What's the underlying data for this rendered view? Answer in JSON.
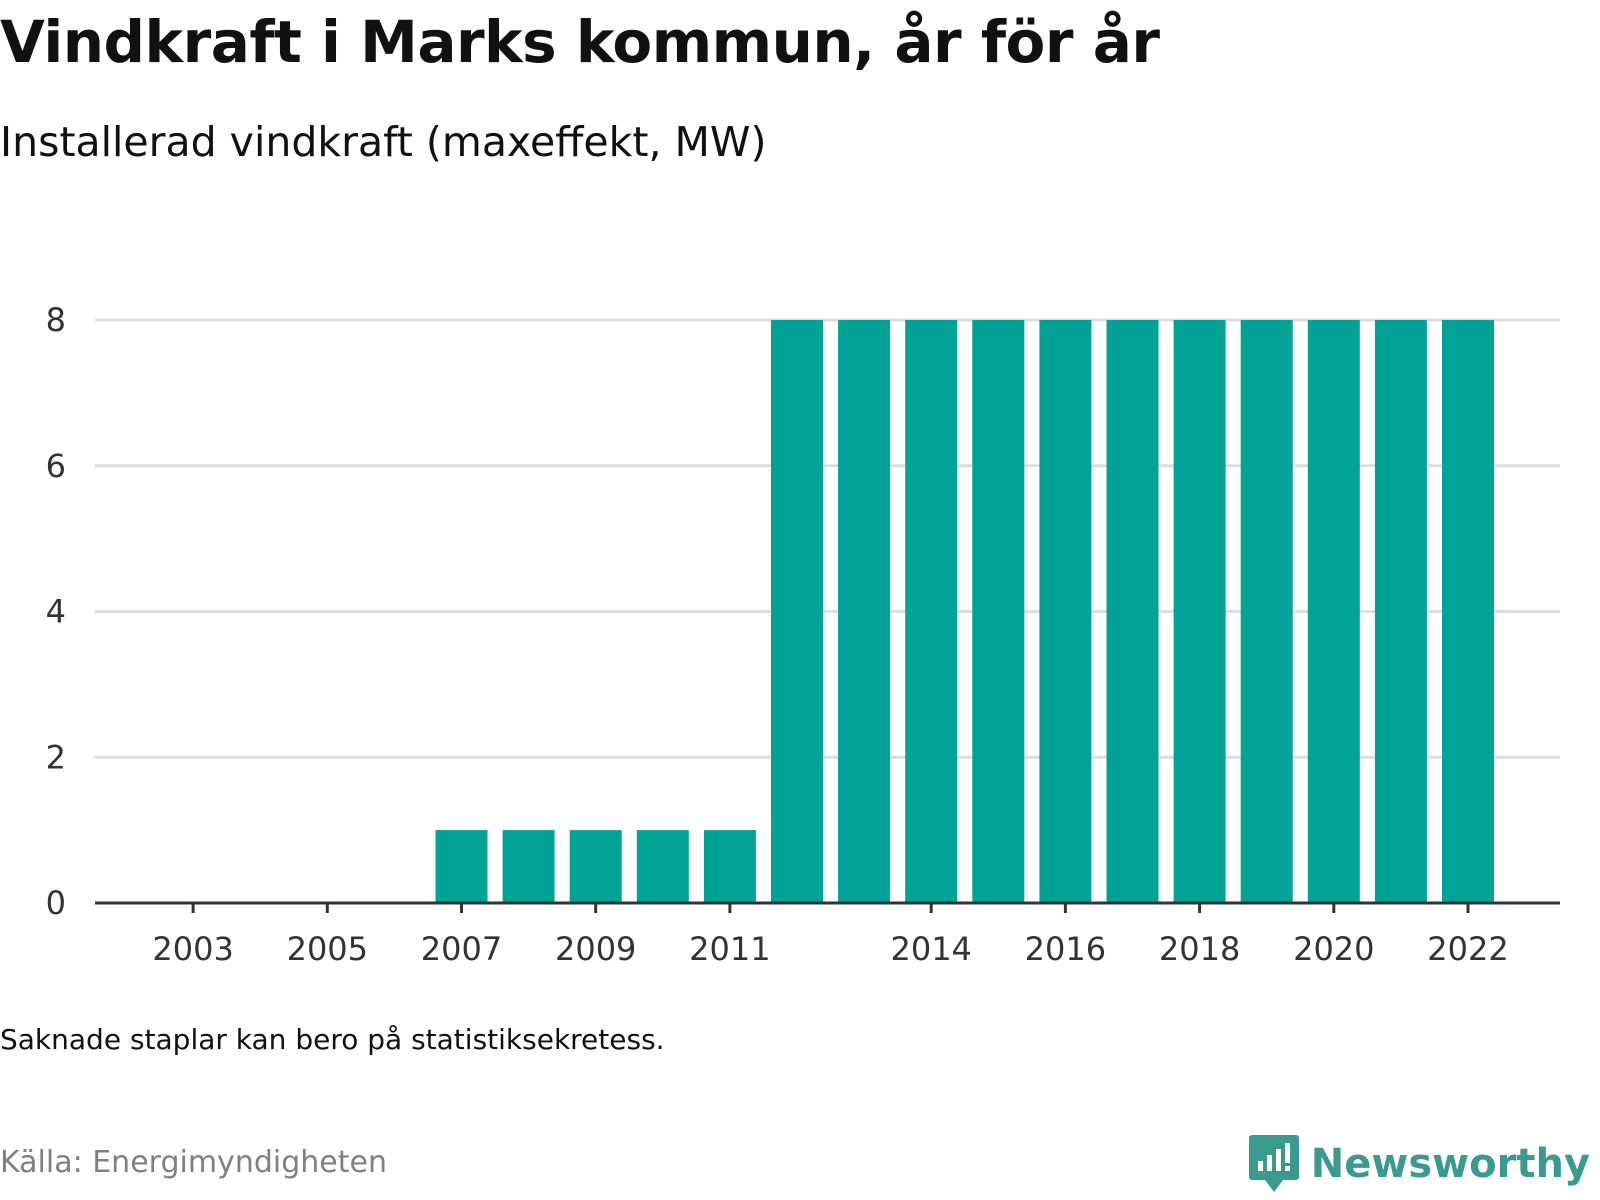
{
  "title": "Vindkraft i Marks kommun, år för år",
  "subtitle": "Installerad vindkraft (maxeffekt, MW)",
  "note": "Saknade staplar kan bero på statistiksekretess.",
  "source": "Källa: Energimyndigheten",
  "brand": {
    "name": "Newsworthy",
    "icon": "newsworthy-logo-icon",
    "color": "#3a9a8f"
  },
  "colors": {
    "bar": "#00a396",
    "grid": "#dddddd",
    "axis": "#333333"
  },
  "chart_data": {
    "type": "bar",
    "categories": [
      "2002",
      "2003",
      "2004",
      "2005",
      "2006",
      "2007",
      "2008",
      "2009",
      "2010",
      "2011",
      "2012",
      "2013",
      "2014",
      "2015",
      "2016",
      "2017",
      "2018",
      "2019",
      "2020",
      "2021",
      "2022"
    ],
    "values": [
      0,
      0,
      0,
      0,
      0,
      1,
      1,
      1,
      1,
      1,
      8,
      8,
      8,
      8,
      8,
      8,
      8,
      8,
      8,
      8,
      8
    ],
    "x_tick_labels": [
      "2003",
      "2005",
      "2007",
      "2009",
      "2011",
      "2014",
      "2016",
      "2018",
      "2020",
      "2022"
    ],
    "y_ticks": [
      0,
      2,
      4,
      6,
      8
    ],
    "ylim": [
      0,
      8
    ],
    "xlabel": "",
    "ylabel": "",
    "grid": true,
    "legend": "none"
  }
}
